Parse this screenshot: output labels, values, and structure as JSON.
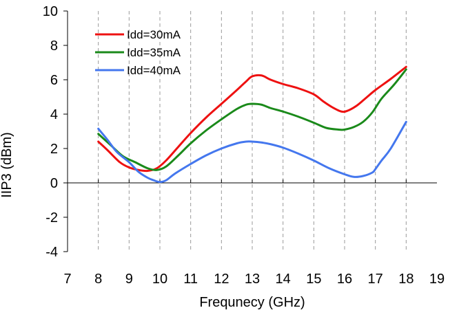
{
  "chart_data": {
    "type": "line",
    "title": "",
    "xlabel": "Frequnecy (GHz)",
    "ylabel": "IIP3 (dBm)",
    "xlim": [
      7,
      19
    ],
    "ylim": [
      -4,
      10
    ],
    "x_ticks": [
      7,
      8,
      9,
      10,
      11,
      12,
      13,
      14,
      15,
      16,
      17,
      18,
      19
    ],
    "y_ticks": [
      -4,
      -2,
      0,
      2,
      4,
      6,
      8,
      10
    ],
    "vertical_gridlines_at": [
      8,
      9,
      10,
      11,
      12,
      13,
      14,
      15,
      16,
      17,
      18
    ],
    "grid": "vertical dashed",
    "legend_position": "top-left",
    "series": [
      {
        "name": "Idd=30mA",
        "color": "#ee1111",
        "x": [
          8.0,
          8.3,
          8.7,
          9.0,
          9.3,
          9.6,
          9.9,
          10.2,
          10.6,
          11.0,
          11.5,
          12.0,
          12.5,
          12.8,
          13.0,
          13.3,
          13.6,
          14.0,
          14.5,
          15.0,
          15.3,
          15.6,
          15.9,
          16.1,
          16.4,
          16.7,
          17.0,
          17.5,
          18.0
        ],
        "values": [
          2.4,
          1.9,
          1.2,
          0.9,
          0.75,
          0.7,
          0.85,
          1.3,
          2.1,
          2.9,
          3.8,
          4.6,
          5.4,
          5.9,
          6.2,
          6.25,
          6.0,
          5.75,
          5.5,
          5.15,
          4.75,
          4.4,
          4.15,
          4.2,
          4.5,
          4.95,
          5.4,
          6.05,
          6.75
        ]
      },
      {
        "name": "Idd=35mA",
        "color": "#1a8a1a",
        "x": [
          8.0,
          8.4,
          8.8,
          9.2,
          9.6,
          9.9,
          10.2,
          10.6,
          11.0,
          11.5,
          12.0,
          12.5,
          12.8,
          13.0,
          13.3,
          13.6,
          14.0,
          14.5,
          15.0,
          15.4,
          15.8,
          16.0,
          16.3,
          16.6,
          16.9,
          17.2,
          17.6,
          18.0
        ],
        "values": [
          2.85,
          2.2,
          1.55,
          1.2,
          0.85,
          0.75,
          0.95,
          1.6,
          2.3,
          3.05,
          3.7,
          4.3,
          4.55,
          4.6,
          4.55,
          4.35,
          4.15,
          3.85,
          3.5,
          3.2,
          3.1,
          3.1,
          3.25,
          3.55,
          4.1,
          4.9,
          5.7,
          6.6
        ]
      },
      {
        "name": "Idd=40mA",
        "color": "#4477ee",
        "x": [
          8.0,
          8.3,
          8.6,
          9.0,
          9.3,
          9.6,
          9.8,
          10.0,
          10.2,
          10.5,
          11.0,
          11.5,
          12.0,
          12.5,
          12.8,
          13.0,
          13.3,
          13.6,
          14.0,
          14.5,
          15.0,
          15.5,
          16.0,
          16.3,
          16.6,
          16.9,
          17.0,
          17.2,
          17.5,
          18.0
        ],
        "values": [
          3.15,
          2.5,
          1.8,
          1.2,
          0.65,
          0.3,
          0.15,
          0.05,
          0.15,
          0.55,
          1.1,
          1.6,
          2.0,
          2.3,
          2.4,
          2.4,
          2.35,
          2.25,
          2.05,
          1.7,
          1.3,
          0.85,
          0.5,
          0.35,
          0.4,
          0.6,
          0.8,
          1.3,
          2.0,
          3.55
        ]
      }
    ]
  }
}
